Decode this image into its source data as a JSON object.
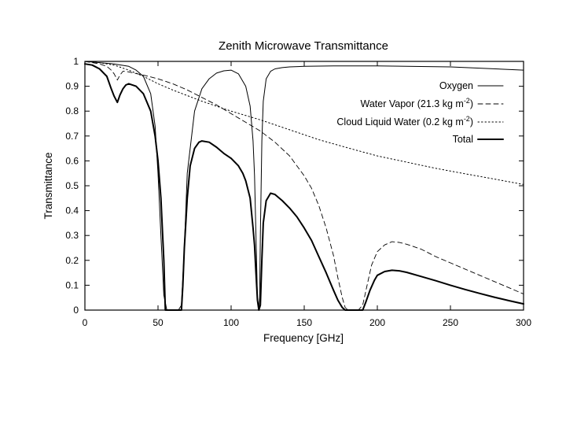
{
  "chart_data": {
    "type": "line",
    "title": "Zenith Microwave Transmittance",
    "xlabel": "Frequency [GHz]",
    "ylabel": "Transmittance",
    "xlim": [
      0,
      300
    ],
    "ylim": [
      0,
      1
    ],
    "grid": false,
    "legend_position": "top-right",
    "x_ticks": [
      0,
      50,
      100,
      150,
      200,
      250,
      300
    ],
    "y_ticks": [
      0,
      0.1,
      0.2,
      0.3,
      0.4,
      0.5,
      0.6,
      0.7,
      0.8,
      0.9,
      1
    ],
    "x_tick_labels": [
      "0",
      "50",
      "100",
      "150",
      "200",
      "250",
      "300"
    ],
    "y_tick_labels": [
      "0",
      "0.1",
      "0.2",
      "0.3",
      "0.4",
      "0.5",
      "0.6",
      "0.7",
      "0.8",
      "0.9",
      "1"
    ],
    "series": [
      {
        "name": "Oxygen",
        "legend": {
          "text": "Oxygen"
        },
        "style": "solid-thin",
        "x": [
          0,
          10,
          20,
          30,
          35,
          40,
          45,
          48,
          50,
          52,
          54,
          56,
          60,
          64,
          66,
          68,
          70,
          75,
          80,
          85,
          90,
          95,
          100,
          105,
          110,
          113,
          115,
          116,
          117,
          118,
          118.75,
          119.5,
          120,
          121,
          122,
          124,
          127,
          130,
          135,
          140,
          150,
          170,
          200,
          250,
          300
        ],
        "y": [
          1.0,
          0.995,
          0.99,
          0.98,
          0.965,
          0.94,
          0.87,
          0.74,
          0.55,
          0.3,
          0.06,
          0.0,
          0.0,
          0.0,
          0.02,
          0.25,
          0.55,
          0.8,
          0.89,
          0.93,
          0.953,
          0.962,
          0.965,
          0.95,
          0.9,
          0.82,
          0.68,
          0.54,
          0.3,
          0.05,
          0.0,
          0.05,
          0.3,
          0.68,
          0.84,
          0.93,
          0.96,
          0.97,
          0.975,
          0.978,
          0.98,
          0.982,
          0.982,
          0.978,
          0.965
        ]
      },
      {
        "name": "Water Vapor (21.3 kg m-2)",
        "legend": {
          "base": "Water Vapor (21.3 kg m",
          "sup": "-2",
          "close": ")"
        },
        "style": "dashed",
        "x": [
          0,
          10,
          15,
          18,
          20,
          22.2,
          24,
          26,
          28,
          32,
          40,
          50,
          60,
          70,
          80,
          90,
          100,
          110,
          120,
          130,
          140,
          150,
          155,
          160,
          165,
          170,
          173,
          176,
          178,
          180,
          183.3,
          187,
          190,
          193,
          196,
          200,
          205,
          210,
          215,
          220,
          230,
          240,
          250,
          260,
          270,
          280,
          290,
          300
        ],
        "y": [
          1.0,
          0.99,
          0.98,
          0.965,
          0.95,
          0.925,
          0.945,
          0.96,
          0.96,
          0.955,
          0.945,
          0.93,
          0.91,
          0.885,
          0.855,
          0.825,
          0.79,
          0.755,
          0.72,
          0.675,
          0.62,
          0.54,
          0.49,
          0.42,
          0.33,
          0.22,
          0.13,
          0.05,
          0.01,
          0.0,
          0.0,
          0.0,
          0.02,
          0.1,
          0.18,
          0.235,
          0.262,
          0.275,
          0.272,
          0.265,
          0.245,
          0.215,
          0.19,
          0.165,
          0.14,
          0.115,
          0.09,
          0.065
        ]
      },
      {
        "name": "Cloud Liquid Water (0.2 kg m-2)",
        "legend": {
          "base": "Cloud Liquid Water (0.2 kg m",
          "sup": "-2",
          "close": ")"
        },
        "style": "dotted",
        "x": [
          0,
          10,
          20,
          30,
          40,
          50,
          60,
          80,
          100,
          120,
          140,
          160,
          180,
          200,
          220,
          240,
          260,
          280,
          300
        ],
        "y": [
          1.0,
          0.995,
          0.985,
          0.965,
          0.94,
          0.91,
          0.885,
          0.84,
          0.8,
          0.765,
          0.725,
          0.685,
          0.652,
          0.62,
          0.595,
          0.57,
          0.548,
          0.527,
          0.505
        ]
      },
      {
        "name": "Total",
        "legend": {
          "text": "Total"
        },
        "style": "solid-thick",
        "x": [
          0,
          5,
          10,
          15,
          18,
          20,
          22.2,
          24,
          26,
          28,
          30,
          35,
          40,
          45,
          48,
          50,
          52,
          54,
          55,
          66,
          67,
          68,
          70,
          72,
          75,
          78,
          80,
          85,
          90,
          95,
          100,
          105,
          108,
          110,
          113,
          115,
          116,
          117,
          118,
          119,
          120,
          121,
          122,
          124,
          127,
          130,
          135,
          140,
          145,
          150,
          155,
          160,
          165,
          170,
          173,
          176,
          178,
          180,
          190,
          192,
          195,
          198,
          200,
          205,
          210,
          215,
          220,
          230,
          240,
          250,
          260,
          270,
          280,
          290,
          300
        ],
        "y": [
          0.99,
          0.985,
          0.97,
          0.94,
          0.89,
          0.86,
          0.835,
          0.865,
          0.89,
          0.905,
          0.91,
          0.9,
          0.87,
          0.8,
          0.7,
          0.6,
          0.45,
          0.2,
          0.0,
          0.0,
          0.1,
          0.25,
          0.45,
          0.58,
          0.65,
          0.675,
          0.68,
          0.675,
          0.655,
          0.63,
          0.61,
          0.58,
          0.55,
          0.52,
          0.45,
          0.33,
          0.26,
          0.15,
          0.04,
          0.0,
          0.02,
          0.2,
          0.35,
          0.44,
          0.47,
          0.465,
          0.44,
          0.41,
          0.375,
          0.33,
          0.28,
          0.215,
          0.15,
          0.08,
          0.04,
          0.01,
          0.0,
          0.0,
          0.0,
          0.03,
          0.08,
          0.12,
          0.14,
          0.155,
          0.16,
          0.158,
          0.152,
          0.135,
          0.118,
          0.1,
          0.083,
          0.067,
          0.052,
          0.038,
          0.025
        ]
      }
    ]
  }
}
